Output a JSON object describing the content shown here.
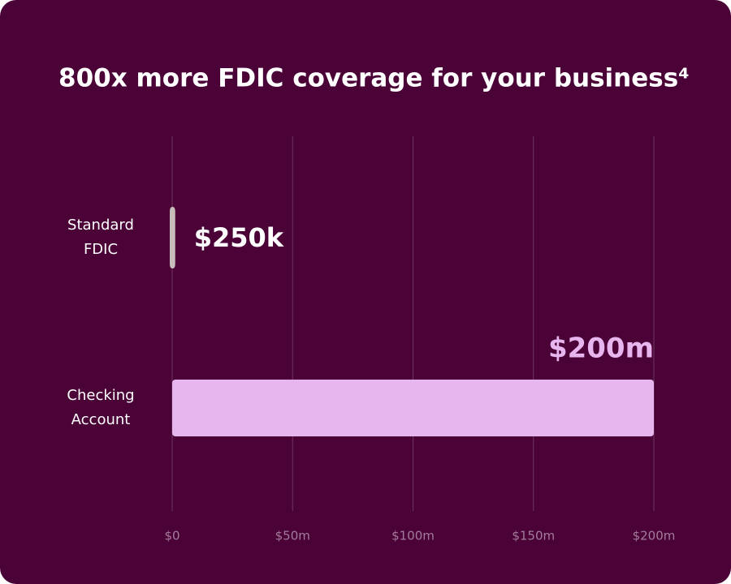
{
  "chart_data": {
    "type": "hbar",
    "title": "800x more FDIC coverage for your business⁴",
    "categories": [
      "Standard FDIC",
      "Checking Account"
    ],
    "values": [
      0.25,
      200
    ],
    "value_labels": [
      "$250k",
      "$200m"
    ],
    "colors": [
      "#c9bdbb",
      "#e8b6ef"
    ],
    "label_colors": [
      "#ffffff",
      "#e8b6ef"
    ],
    "xlim": [
      0,
      200
    ],
    "xticks": [
      {
        "value": 0,
        "label": "$0"
      },
      {
        "value": 50,
        "label": "$50m"
      },
      {
        "value": 100,
        "label": "$100m"
      },
      {
        "value": 150,
        "label": "$150m"
      },
      {
        "value": 200,
        "label": "$200m"
      }
    ],
    "grid": true
  }
}
